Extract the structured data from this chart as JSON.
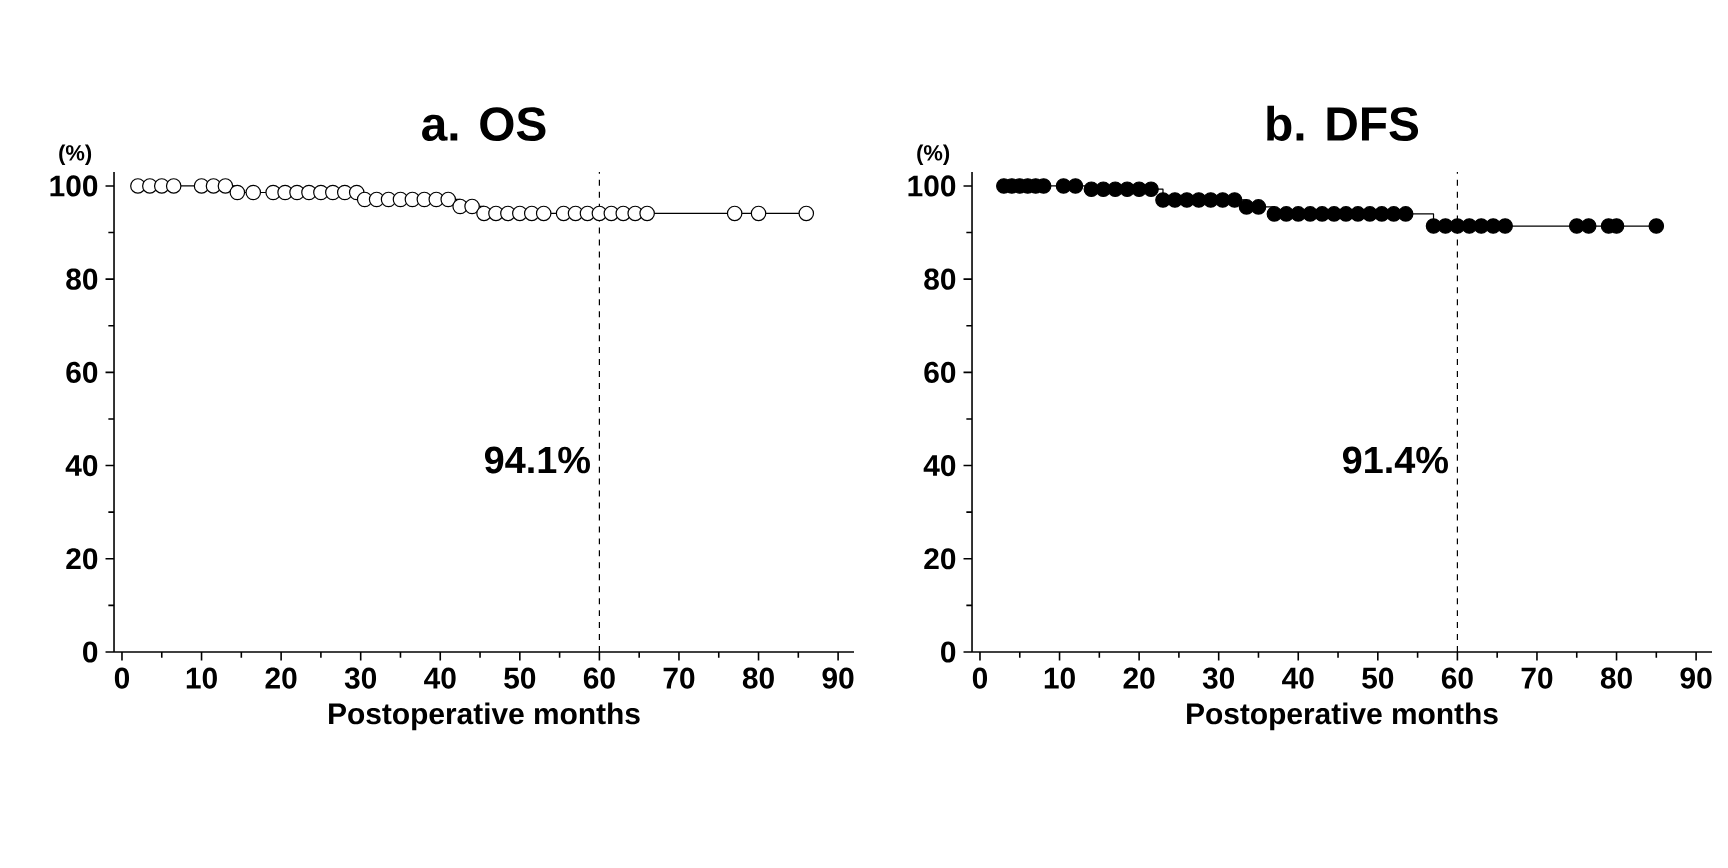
{
  "chart_data": [
    {
      "type": "step",
      "title": "a. OS",
      "xlabel": "Postoperative months",
      "ylabel": "(%)",
      "xlim": [
        -1,
        92
      ],
      "ylim": [
        0,
        103
      ],
      "xticks": [
        0,
        10,
        20,
        30,
        40,
        50,
        60,
        70,
        80,
        90
      ],
      "yticks": [
        0,
        20,
        40,
        60,
        80,
        100
      ],
      "marker": "circle",
      "line_style": "solid",
      "series": [
        {
          "color": "#ffffff",
          "x": [
            2,
            3.5,
            5,
            6.5,
            10,
            11.5,
            13,
            14.5,
            16.5,
            19,
            20.5,
            22,
            23.5,
            25,
            26.5,
            28,
            29.5,
            30.5,
            32,
            33.5,
            35,
            36.5,
            38,
            39.5,
            41,
            42.5,
            44,
            45.5,
            47,
            48.5,
            50,
            51.5,
            53,
            55.5,
            57,
            58.5,
            60,
            61.5,
            63,
            64.5,
            66,
            77,
            80,
            86
          ],
          "values": [
            100,
            100,
            100,
            100,
            100,
            100,
            100,
            98.6,
            98.6,
            98.6,
            98.6,
            98.6,
            98.6,
            98.6,
            98.6,
            98.6,
            98.6,
            97.1,
            97.1,
            97.1,
            97.1,
            97.1,
            97.1,
            97.1,
            97.1,
            95.6,
            95.6,
            94.1,
            94.1,
            94.1,
            94.1,
            94.1,
            94.1,
            94.1,
            94.1,
            94.1,
            94.1,
            94.1,
            94.1,
            94.1,
            94.1,
            94.1,
            94.1,
            94.1
          ]
        }
      ],
      "ref_lines": [
        {
          "axis": "x",
          "value": 60,
          "line_style": "dashed"
        }
      ],
      "annotations": [
        "94.1%"
      ]
    },
    {
      "type": "step",
      "title": "b. DFS",
      "xlabel": "Postoperative months",
      "ylabel": "(%)",
      "xlim": [
        -1,
        92
      ],
      "ylim": [
        0,
        103
      ],
      "xticks": [
        0,
        10,
        20,
        30,
        40,
        50,
        60,
        70,
        80,
        90
      ],
      "yticks": [
        0,
        20,
        40,
        60,
        80,
        100
      ],
      "marker": "circle",
      "line_style": "solid",
      "series": [
        {
          "color": "#000000",
          "x": [
            3,
            4,
            5,
            6,
            7,
            8,
            10.5,
            12,
            14,
            15.5,
            17,
            18.5,
            20,
            21.5,
            23,
            24.5,
            26,
            27.5,
            29,
            30.5,
            32,
            33.5,
            35,
            37,
            38.5,
            40,
            41.5,
            43,
            44.5,
            46,
            47.5,
            49,
            50.5,
            52,
            53.5,
            57,
            58.5,
            60,
            61.5,
            63,
            64.5,
            66,
            75,
            76.5,
            79,
            80,
            85
          ],
          "values": [
            100,
            100,
            100,
            100,
            100,
            100,
            100,
            100,
            99.3,
            99.3,
            99.3,
            99.3,
            99.3,
            99.3,
            97,
            97,
            97,
            97,
            97,
            97,
            97,
            95.5,
            95.5,
            94,
            94,
            94,
            94,
            94,
            94,
            94,
            94,
            94,
            94,
            94,
            94,
            91.4,
            91.4,
            91.4,
            91.4,
            91.4,
            91.4,
            91.4,
            91.4,
            91.4,
            91.4,
            91.4,
            91.4
          ]
        }
      ],
      "ref_lines": [
        {
          "axis": "x",
          "value": 60,
          "line_style": "dashed"
        }
      ],
      "annotations": [
        "91.4%"
      ]
    }
  ]
}
